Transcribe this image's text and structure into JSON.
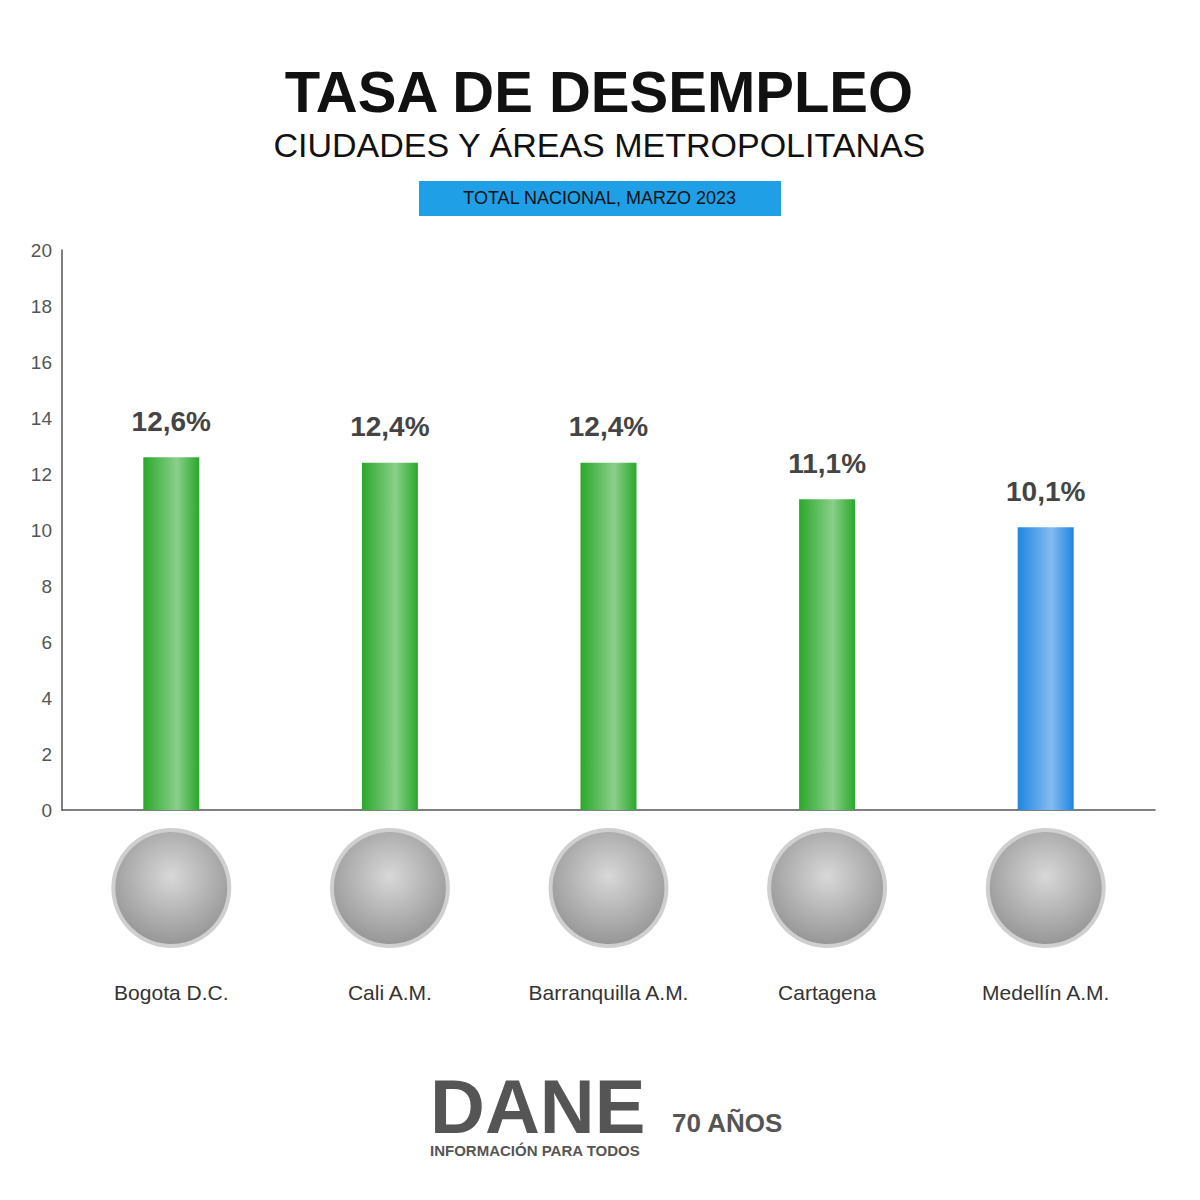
{
  "chart_data": {
    "type": "bar",
    "title": "TASA DE DESEMPLEO",
    "subtitle": "CIUDADES Y ÁREAS METROPOLITANAS",
    "annotations": [
      "TOTAL NACIONAL, MARZO 2023",
      "DANE",
      "INFORMACIÓN PARA TODOS",
      "70 AÑOS"
    ],
    "categories": [
      "Bogota D.C.",
      "Cali A.M.",
      "Barranquilla A.M.",
      "Cartagena",
      "Medellín A.M."
    ],
    "values": [
      12.6,
      12.4,
      12.4,
      11.1,
      10.1
    ],
    "value_labels": [
      "12,6%",
      "12,4%",
      "12,4%",
      "11,1%",
      "10,1%"
    ],
    "colors": [
      "#2aa82a",
      "#2aa82a",
      "#2aa82a",
      "#2aa82a",
      "#1f86e0"
    ],
    "ylim": [
      0,
      20
    ],
    "yticks": [
      0,
      2,
      4,
      6,
      8,
      10,
      12,
      14,
      16,
      18,
      20
    ],
    "grid": false,
    "data_labels": true
  }
}
